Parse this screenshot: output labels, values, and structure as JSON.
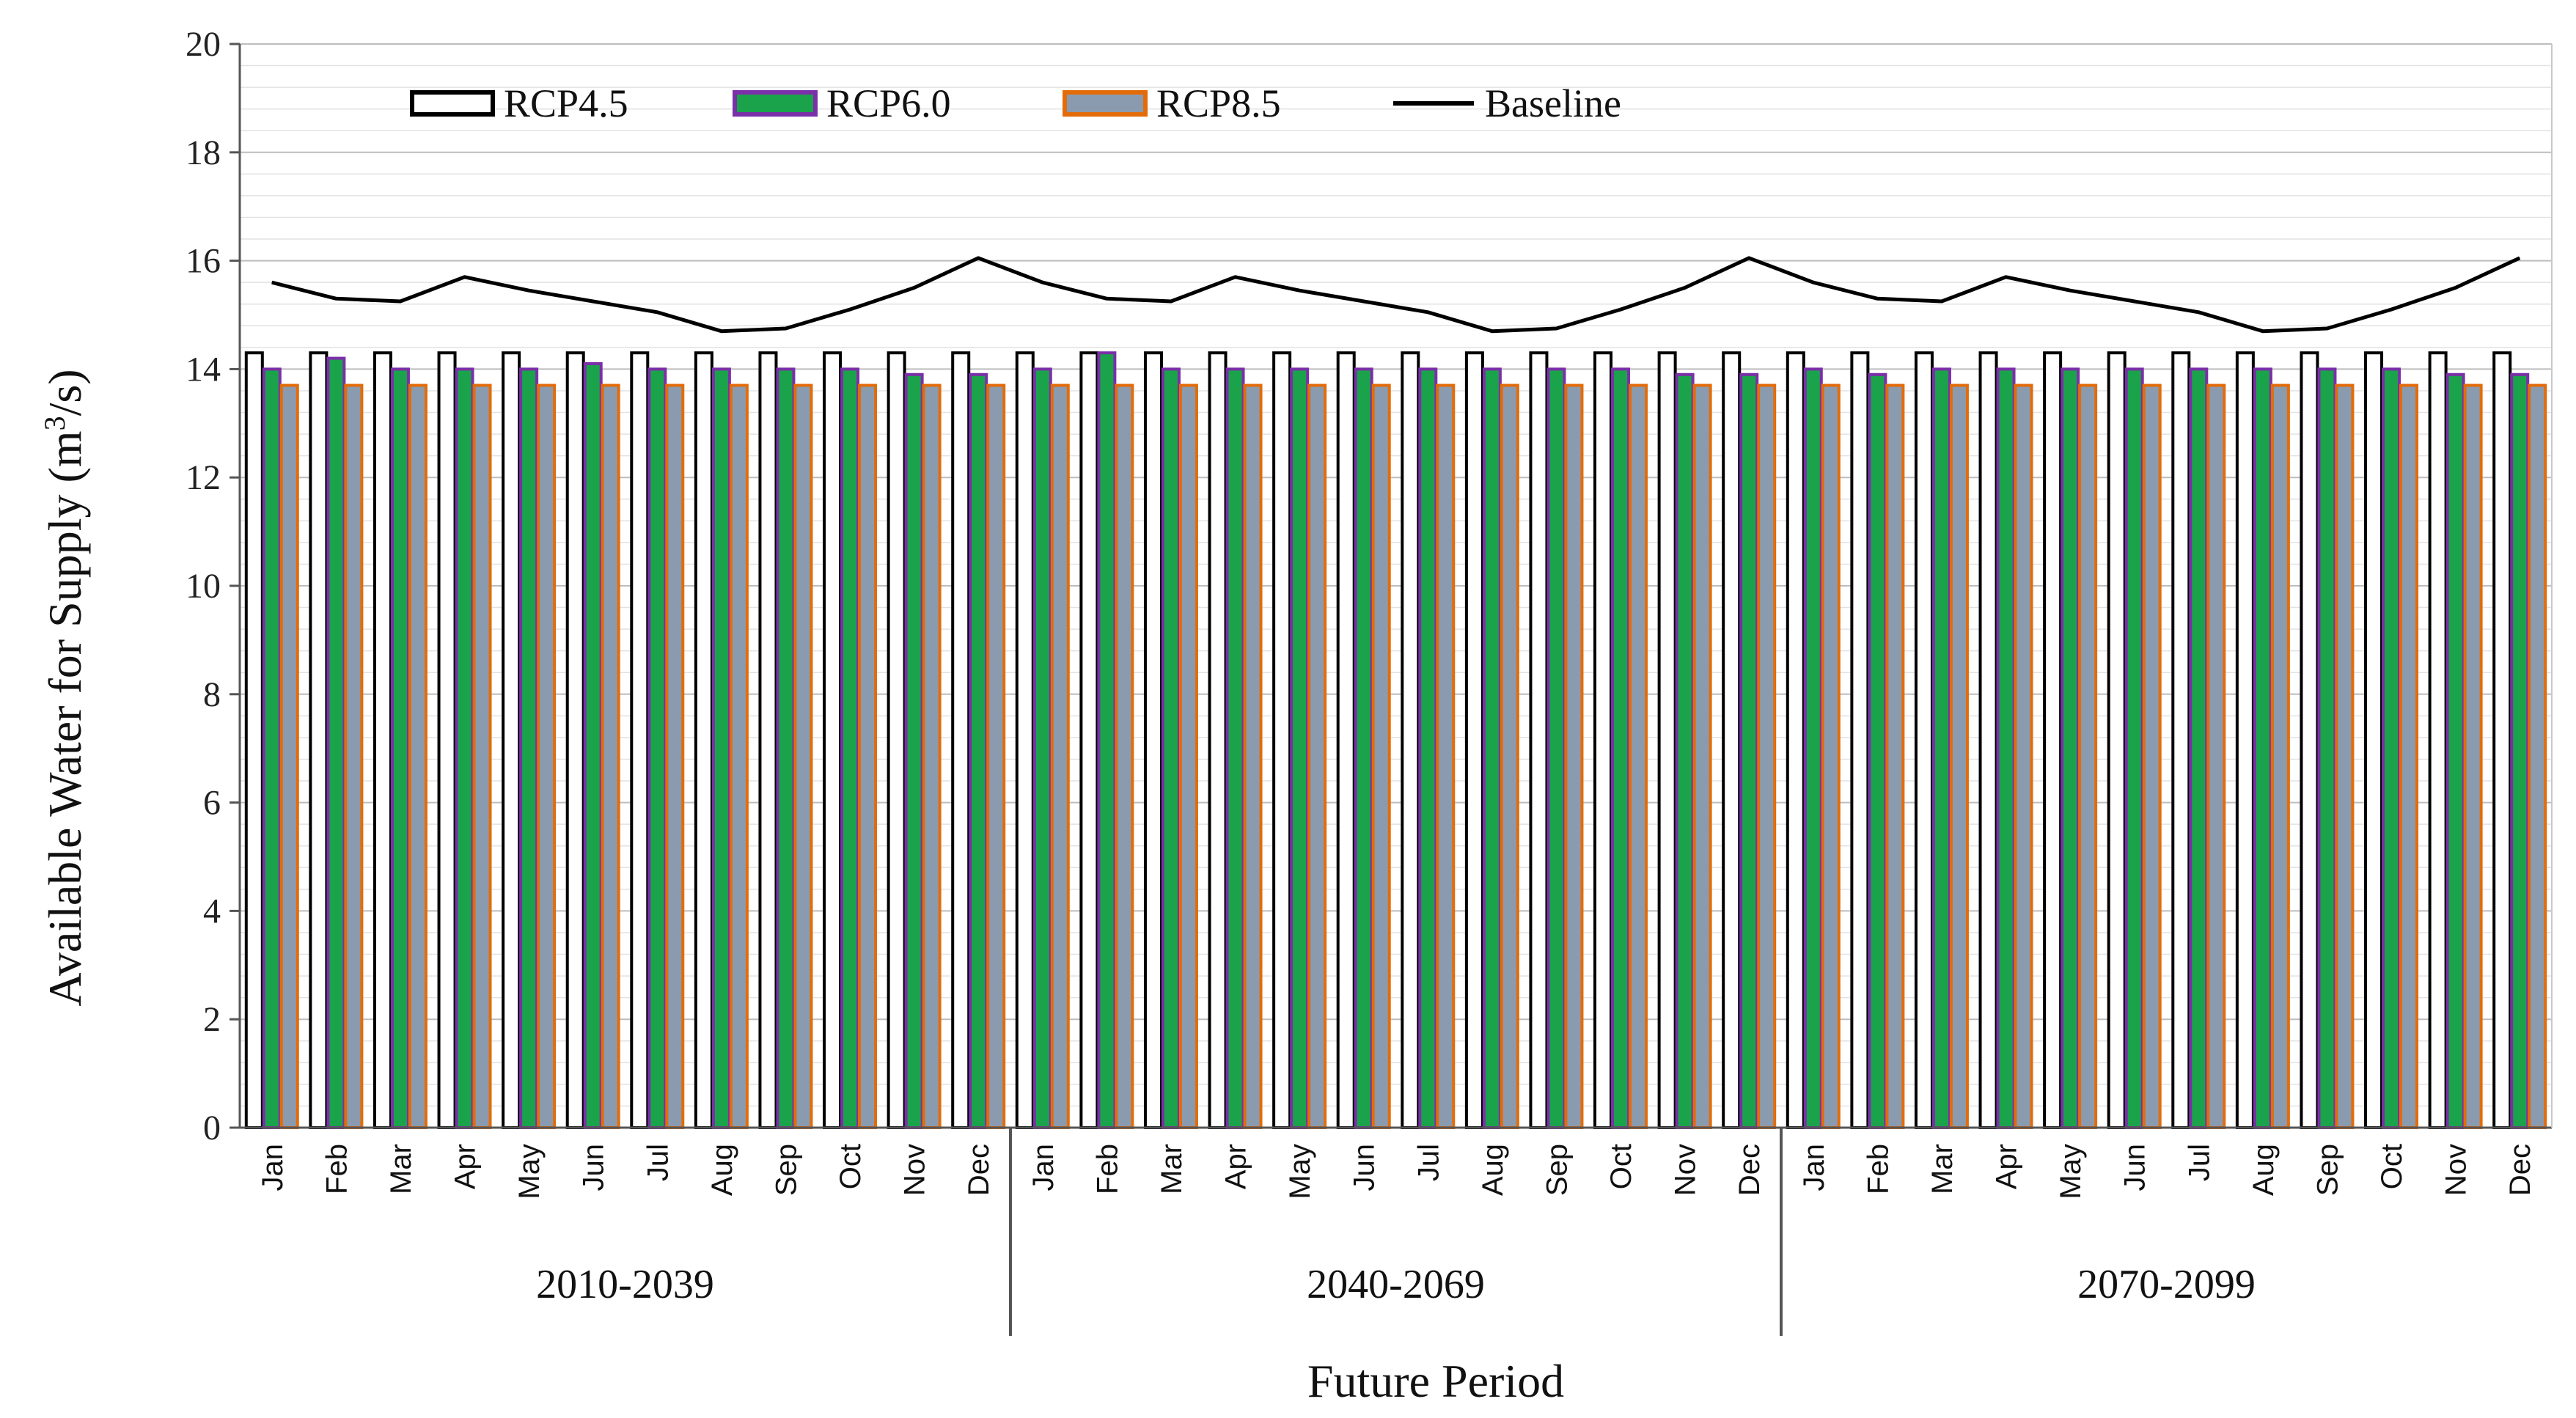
{
  "chart_data": {
    "type": "bar",
    "title": "",
    "xlabel": "Future Period",
    "ylabel": "Available Water for Supply (m³/s)",
    "ylabel_parts": [
      "Available Water for Supply (m",
      "3",
      "/s)"
    ],
    "ylim": [
      0,
      20
    ],
    "yticks": [
      0,
      2,
      4,
      6,
      8,
      10,
      12,
      14,
      16,
      18,
      20
    ],
    "minor_grid_step": 0.4,
    "legend_position": "top-left",
    "periods": [
      "2010-2039",
      "2040-2069",
      "2070-2099"
    ],
    "months": [
      "Jan",
      "Feb",
      "Mar",
      "Apr",
      "May",
      "Jun",
      "Jul",
      "Aug",
      "Sep",
      "Oct",
      "Nov",
      "Dec"
    ],
    "series": [
      {
        "name": "RCP4.5",
        "kind": "bar",
        "fill": "#ffffff",
        "stroke": "#000000",
        "values": [
          14.3,
          14.3,
          14.3,
          14.3,
          14.3,
          14.3,
          14.3,
          14.3,
          14.3,
          14.3,
          14.3,
          14.3,
          14.3,
          14.3,
          14.3,
          14.3,
          14.3,
          14.3,
          14.3,
          14.3,
          14.3,
          14.3,
          14.3,
          14.3,
          14.3,
          14.3,
          14.3,
          14.3,
          14.3,
          14.3,
          14.3,
          14.3,
          14.3,
          14.3,
          14.3,
          14.3
        ]
      },
      {
        "name": "RCP6.0",
        "kind": "bar",
        "fill": "#1aa34a",
        "stroke": "#7b2fa8",
        "values": [
          14.0,
          14.2,
          14.0,
          14.0,
          14.0,
          14.1,
          14.0,
          14.0,
          14.0,
          14.0,
          13.9,
          13.9,
          14.0,
          14.3,
          14.0,
          14.0,
          14.0,
          14.0,
          14.0,
          14.0,
          14.0,
          14.0,
          13.9,
          13.9,
          14.0,
          13.9,
          14.0,
          14.0,
          14.0,
          14.0,
          14.0,
          14.0,
          14.0,
          14.0,
          13.9,
          13.9
        ]
      },
      {
        "name": "RCP8.5",
        "kind": "bar",
        "fill": "#8a9bb0",
        "stroke": "#e36c0a",
        "values": [
          13.7,
          13.7,
          13.7,
          13.7,
          13.7,
          13.7,
          13.7,
          13.7,
          13.7,
          13.7,
          13.7,
          13.7,
          13.7,
          13.7,
          13.7,
          13.7,
          13.7,
          13.7,
          13.7,
          13.7,
          13.7,
          13.7,
          13.7,
          13.7,
          13.7,
          13.7,
          13.7,
          13.7,
          13.7,
          13.7,
          13.7,
          13.7,
          13.7,
          13.7,
          13.7,
          13.7
        ]
      },
      {
        "name": "Baseline",
        "kind": "line",
        "stroke": "#000000",
        "values": [
          15.6,
          15.3,
          15.25,
          15.7,
          15.45,
          15.25,
          15.05,
          14.7,
          14.75,
          15.1,
          15.5,
          16.05,
          15.6,
          15.3,
          15.25,
          15.7,
          15.45,
          15.25,
          15.05,
          14.7,
          14.75,
          15.1,
          15.5,
          16.05,
          15.6,
          15.3,
          15.25,
          15.7,
          15.45,
          15.25,
          15.05,
          14.7,
          14.75,
          15.1,
          15.5,
          16.05
        ]
      }
    ]
  }
}
